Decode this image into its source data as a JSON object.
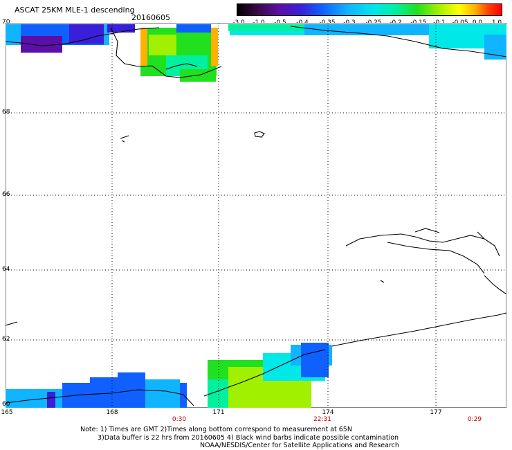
{
  "header": {
    "title": "ASCAT 25KM MLE-1 descending",
    "date": "20160605"
  },
  "colorbar": {
    "ticks": [
      "-3.0",
      "-1.0",
      "-0.5",
      "-0.4",
      "-0.35",
      "-0.3",
      "-0.25",
      "-0.2",
      "-0.15",
      "-0.1",
      "-0.05",
      "0.0",
      "1.0"
    ]
  },
  "axes": {
    "latitude_labels": [
      "70",
      "68",
      "66",
      "64",
      "62",
      "60"
    ],
    "longitude_labels": [
      "165",
      "168",
      "171",
      "174",
      "177"
    ],
    "time_labels": [
      "0:30",
      "22:31",
      "0:29"
    ]
  },
  "notes": {
    "line1": "Note: 1) Times are GMT 2)Times along bottom correspond to measurement at 65N",
    "line2": "3)Data buffer is 22 hrs from 20160605 4) Black wind barbs indicate possible contamination",
    "line3": "NOAA/NESDIS/Center for Satellite Applications and Research"
  },
  "colors": {
    "blue": "#1060ff",
    "dark_blue": "#3a1fd8",
    "purple": "#5b0ea8",
    "cyan": "#00e8e8",
    "green": "#20e020",
    "yellow_green": "#a0f000",
    "orange": "#ffb000",
    "time_red": "#c00000"
  }
}
